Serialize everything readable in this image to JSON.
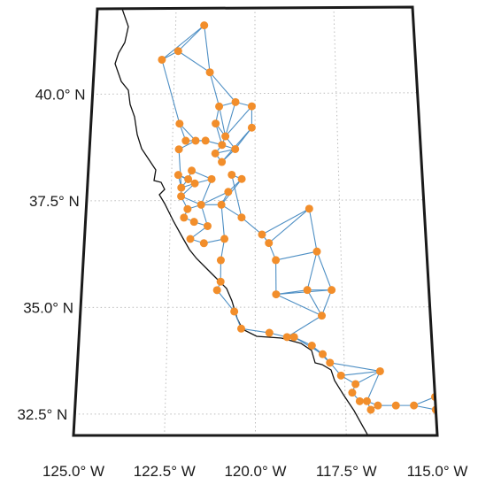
{
  "map": {
    "lat_labels": [
      {
        "lat": 40.0,
        "text": "40.0° N"
      },
      {
        "lat": 37.5,
        "text": "37.5° N"
      },
      {
        "lat": 35.0,
        "text": "35.0° N"
      },
      {
        "lat": 32.5,
        "text": "32.5° N"
      }
    ],
    "lon_labels": [
      {
        "lon": -125.0,
        "text": "125.0° W"
      },
      {
        "lon": -122.5,
        "text": "122.5° W"
      },
      {
        "lon": -120.0,
        "text": "120.0° W"
      },
      {
        "lon": -117.5,
        "text": "117.5° W"
      },
      {
        "lon": -115.0,
        "text": "115.0° W"
      }
    ],
    "extent": {
      "lon_min": -125.0,
      "lon_max": -115.0,
      "lat_min": 32.0,
      "lat_max": 42.0
    },
    "gridlines": true,
    "colors": {
      "node": "#f28e2b",
      "edge": "#4e8fc4",
      "coast": "#111111",
      "frame": "#1a1a1a",
      "grid": "#bbbbbb"
    },
    "nodes": [
      [
        -121.6,
        41.6
      ],
      [
        -122.4,
        41.0
      ],
      [
        -122.9,
        40.8
      ],
      [
        -121.4,
        40.5
      ],
      [
        -120.6,
        39.8
      ],
      [
        -120.1,
        39.7
      ],
      [
        -121.1,
        39.7
      ],
      [
        -122.3,
        39.3
      ],
      [
        -121.2,
        39.3
      ],
      [
        -120.9,
        39.0
      ],
      [
        -122.1,
        38.9
      ],
      [
        -121.5,
        38.9
      ],
      [
        -121.8,
        38.9
      ],
      [
        -122.3,
        38.7
      ],
      [
        -121.0,
        38.8
      ],
      [
        -120.6,
        38.7
      ],
      [
        -121.2,
        38.6
      ],
      [
        -121.0,
        38.4
      ],
      [
        -120.1,
        39.2
      ],
      [
        -122.2,
        37.8
      ],
      [
        -122.3,
        38.1
      ],
      [
        -121.8,
        37.9
      ],
      [
        -122.2,
        37.6
      ],
      [
        -122.0,
        37.3
      ],
      [
        -122.1,
        37.1
      ],
      [
        -121.6,
        37.4
      ],
      [
        -121.0,
        37.4
      ],
      [
        -120.8,
        37.7
      ],
      [
        -120.4,
        37.1
      ],
      [
        -119.8,
        36.7
      ],
      [
        -119.6,
        36.5
      ],
      [
        -118.4,
        37.3
      ],
      [
        -119.4,
        36.1
      ],
      [
        -118.2,
        36.3
      ],
      [
        -119.1,
        34.3
      ],
      [
        -119.4,
        35.3
      ],
      [
        -118.5,
        35.4
      ],
      [
        -117.8,
        35.4
      ],
      [
        -118.1,
        34.8
      ],
      [
        -121.1,
        35.4
      ],
      [
        -120.6,
        34.9
      ],
      [
        -120.4,
        34.5
      ],
      [
        -119.6,
        34.4
      ],
      [
        -118.9,
        34.3
      ],
      [
        -118.4,
        34.1
      ],
      [
        -118.1,
        33.9
      ],
      [
        -117.9,
        33.7
      ],
      [
        -117.6,
        33.4
      ],
      [
        -117.2,
        33.2
      ],
      [
        -117.1,
        32.8
      ],
      [
        -116.5,
        33.5
      ],
      [
        -117.3,
        33.0
      ],
      [
        -116.9,
        32.8
      ],
      [
        -116.6,
        32.7
      ],
      [
        -115.6,
        32.7
      ],
      [
        -115.0,
        32.9
      ],
      [
        -115.0,
        32.6
      ],
      [
        -116.1,
        32.7
      ],
      [
        -116.8,
        32.6
      ],
      [
        -121.0,
        36.1
      ],
      [
        -120.9,
        36.6
      ],
      [
        -121.4,
        36.9
      ],
      [
        -121.8,
        37.0
      ],
      [
        -121.9,
        36.6
      ],
      [
        -121.5,
        36.5
      ],
      [
        -120.4,
        38.0
      ],
      [
        -120.7,
        38.1
      ],
      [
        -121.3,
        38.0
      ],
      [
        -121.9,
        38.2
      ],
      [
        -122.0,
        38.0
      ],
      [
        -121.0,
        35.6
      ]
    ],
    "edges": [
      [
        0,
        1
      ],
      [
        0,
        2
      ],
      [
        0,
        3
      ],
      [
        1,
        2
      ],
      [
        1,
        3
      ],
      [
        2,
        7
      ],
      [
        3,
        4
      ],
      [
        3,
        6
      ],
      [
        4,
        5
      ],
      [
        4,
        6
      ],
      [
        4,
        9
      ],
      [
        5,
        9
      ],
      [
        5,
        18
      ],
      [
        6,
        8
      ],
      [
        6,
        9
      ],
      [
        7,
        10
      ],
      [
        7,
        12
      ],
      [
        8,
        9
      ],
      [
        8,
        14
      ],
      [
        9,
        15
      ],
      [
        10,
        11
      ],
      [
        10,
        12
      ],
      [
        11,
        12
      ],
      [
        11,
        14
      ],
      [
        12,
        13
      ],
      [
        13,
        19
      ],
      [
        14,
        15
      ],
      [
        14,
        16
      ],
      [
        15,
        16
      ],
      [
        16,
        17
      ],
      [
        15,
        17
      ],
      [
        18,
        17
      ],
      [
        18,
        15
      ],
      [
        9,
        14
      ],
      [
        19,
        20
      ],
      [
        19,
        21
      ],
      [
        19,
        22
      ],
      [
        20,
        21
      ],
      [
        21,
        22
      ],
      [
        22,
        23
      ],
      [
        23,
        24
      ],
      [
        23,
        25
      ],
      [
        22,
        25
      ],
      [
        25,
        26
      ],
      [
        25,
        27
      ],
      [
        26,
        27
      ],
      [
        27,
        65
      ],
      [
        26,
        65
      ],
      [
        65,
        66
      ],
      [
        66,
        28
      ],
      [
        26,
        28
      ],
      [
        28,
        29
      ],
      [
        29,
        30
      ],
      [
        29,
        31
      ],
      [
        30,
        31
      ],
      [
        30,
        32
      ],
      [
        31,
        33
      ],
      [
        32,
        33
      ],
      [
        32,
        35
      ],
      [
        33,
        36
      ],
      [
        33,
        37
      ],
      [
        35,
        36
      ],
      [
        35,
        37
      ],
      [
        36,
        37
      ],
      [
        35,
        38
      ],
      [
        37,
        38
      ],
      [
        36,
        38
      ],
      [
        38,
        34
      ],
      [
        24,
        62
      ],
      [
        62,
        61
      ],
      [
        61,
        63
      ],
      [
        63,
        64
      ],
      [
        64,
        60
      ],
      [
        60,
        59
      ],
      [
        59,
        70
      ],
      [
        70,
        39
      ],
      [
        39,
        40
      ],
      [
        40,
        41
      ],
      [
        41,
        42
      ],
      [
        42,
        34
      ],
      [
        34,
        43
      ],
      [
        43,
        44
      ],
      [
        44,
        45
      ],
      [
        45,
        46
      ],
      [
        46,
        47
      ],
      [
        47,
        48
      ],
      [
        48,
        51
      ],
      [
        51,
        49
      ],
      [
        49,
        52
      ],
      [
        52,
        53
      ],
      [
        53,
        57
      ],
      [
        57,
        54
      ],
      [
        54,
        55
      ],
      [
        55,
        56
      ],
      [
        54,
        56
      ],
      [
        53,
        58
      ],
      [
        52,
        58
      ],
      [
        50,
        48
      ],
      [
        50,
        47
      ],
      [
        50,
        52
      ],
      [
        46,
        50
      ],
      [
        44,
        46
      ],
      [
        43,
        45
      ],
      [
        67,
        68
      ],
      [
        68,
        69
      ],
      [
        67,
        21
      ],
      [
        69,
        20
      ],
      [
        25,
        67
      ],
      [
        61,
        25
      ],
      [
        60,
        26
      ],
      [
        19,
        69
      ]
    ]
  }
}
